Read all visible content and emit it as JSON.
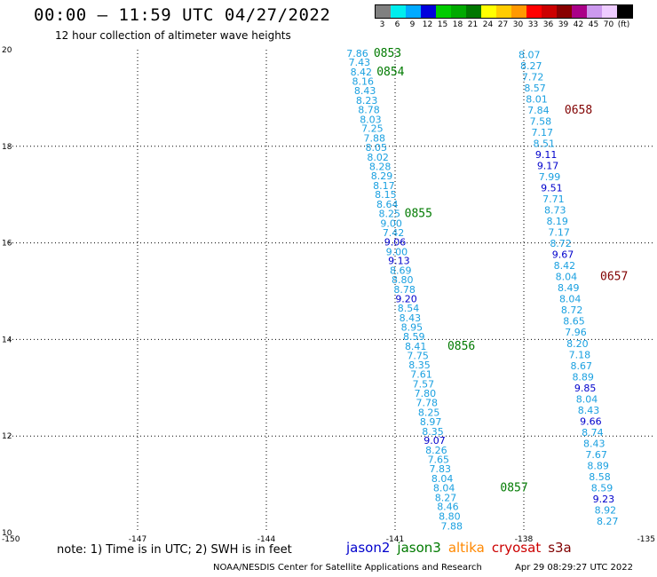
{
  "header": {
    "title": "00:00 – 11:59 UTC 04/27/2022",
    "subtitle": "12 hour collection of altimeter wave heights"
  },
  "colorbar": {
    "colors": [
      "#808080",
      "#00eeee",
      "#00aaff",
      "#0000dd",
      "#00cc00",
      "#00aa00",
      "#007700",
      "#ffff00",
      "#ffcc00",
      "#ff9900",
      "#ff0000",
      "#cc0000",
      "#880000",
      "#aa0088",
      "#cc99ee",
      "#eeccff",
      "#000000"
    ],
    "labels": [
      "3",
      "6",
      "9",
      "12",
      "15",
      "18",
      "21",
      "24",
      "27",
      "30",
      "33",
      "36",
      "39",
      "42",
      "45",
      "70",
      "(ft)"
    ]
  },
  "map": {
    "y_ticks": [
      "20",
      "18",
      "16",
      "14",
      "12",
      "10"
    ],
    "x_ticks": [
      "-150",
      "-147",
      "-144",
      "-141",
      "-138",
      "-135"
    ]
  },
  "chart_data": {
    "type": "scatter",
    "x_range": [
      -150,
      -135
    ],
    "y_range": [
      10,
      20
    ],
    "grid": true,
    "value_colors": {
      "cyan": "#1aa0e0",
      "blue": "#0000cc",
      "green": "#007a00",
      "darkred": "#800000"
    },
    "tracks": [
      {
        "satellite": "jason3",
        "points": [
          {
            "lon": -141.88,
            "lat": 19.93,
            "swh": "7.86",
            "color": "cyan"
          },
          {
            "lon": -141.83,
            "lat": 19.74,
            "swh": "7.43",
            "color": "cyan"
          },
          {
            "lon": -141.79,
            "lat": 19.54,
            "swh": "8.42",
            "color": "cyan"
          },
          {
            "lon": -141.75,
            "lat": 19.35,
            "swh": "8.16",
            "color": "cyan"
          },
          {
            "lon": -141.7,
            "lat": 19.15,
            "swh": "8.43",
            "color": "cyan"
          },
          {
            "lon": -141.66,
            "lat": 18.95,
            "swh": "8.23",
            "color": "cyan"
          },
          {
            "lon": -141.61,
            "lat": 18.76,
            "swh": "8.78",
            "color": "cyan"
          },
          {
            "lon": -141.57,
            "lat": 18.56,
            "swh": "8.03",
            "color": "cyan"
          },
          {
            "lon": -141.53,
            "lat": 18.37,
            "swh": "7.25",
            "color": "cyan"
          },
          {
            "lon": -141.48,
            "lat": 18.17,
            "swh": "7.88",
            "color": "cyan"
          },
          {
            "lon": -141.44,
            "lat": 17.98,
            "swh": "8.05",
            "color": "cyan"
          },
          {
            "lon": -141.4,
            "lat": 17.78,
            "swh": "8.02",
            "color": "cyan"
          },
          {
            "lon": -141.35,
            "lat": 17.58,
            "swh": "8.28",
            "color": "cyan"
          },
          {
            "lon": -141.31,
            "lat": 17.39,
            "swh": "8.29",
            "color": "cyan"
          },
          {
            "lon": -141.26,
            "lat": 17.19,
            "swh": "8.17",
            "color": "cyan"
          },
          {
            "lon": -141.22,
            "lat": 17.0,
            "swh": "8.15",
            "color": "cyan"
          },
          {
            "lon": -141.18,
            "lat": 16.8,
            "swh": "8.64",
            "color": "cyan"
          },
          {
            "lon": -141.13,
            "lat": 16.61,
            "swh": "8.25",
            "color": "cyan"
          },
          {
            "lon": -141.09,
            "lat": 16.41,
            "swh": "9.00",
            "color": "cyan"
          },
          {
            "lon": -141.04,
            "lat": 16.21,
            "swh": "7.42",
            "color": "cyan"
          },
          {
            "lon": -141.0,
            "lat": 16.02,
            "swh": "9.06",
            "color": "blue"
          },
          {
            "lon": -140.96,
            "lat": 15.82,
            "swh": "9.00",
            "color": "cyan"
          },
          {
            "lon": -140.91,
            "lat": 15.63,
            "swh": "9.13",
            "color": "blue"
          },
          {
            "lon": -140.87,
            "lat": 15.43,
            "swh": "8.69",
            "color": "cyan"
          },
          {
            "lon": -140.83,
            "lat": 15.24,
            "swh": "8.80",
            "color": "cyan"
          },
          {
            "lon": -140.78,
            "lat": 15.04,
            "swh": "8.78",
            "color": "cyan"
          },
          {
            "lon": -140.74,
            "lat": 14.84,
            "swh": "9.20",
            "color": "blue"
          },
          {
            "lon": -140.69,
            "lat": 14.65,
            "swh": "8.54",
            "color": "cyan"
          },
          {
            "lon": -140.65,
            "lat": 14.45,
            "swh": "8.43",
            "color": "cyan"
          },
          {
            "lon": -140.61,
            "lat": 14.26,
            "swh": "8.95",
            "color": "cyan"
          },
          {
            "lon": -140.56,
            "lat": 14.06,
            "swh": "8.59",
            "color": "cyan"
          },
          {
            "lon": -140.52,
            "lat": 13.86,
            "swh": "8.41",
            "color": "cyan"
          },
          {
            "lon": -140.47,
            "lat": 13.67,
            "swh": "7.75",
            "color": "cyan"
          },
          {
            "lon": -140.43,
            "lat": 13.47,
            "swh": "8.35",
            "color": "cyan"
          },
          {
            "lon": -140.39,
            "lat": 13.28,
            "swh": "7.61",
            "color": "cyan"
          },
          {
            "lon": -140.34,
            "lat": 13.08,
            "swh": "7.57",
            "color": "cyan"
          },
          {
            "lon": -140.3,
            "lat": 12.89,
            "swh": "7.80",
            "color": "cyan"
          },
          {
            "lon": -140.26,
            "lat": 12.69,
            "swh": "7.78",
            "color": "cyan"
          },
          {
            "lon": -140.21,
            "lat": 12.49,
            "swh": "8.25",
            "color": "cyan"
          },
          {
            "lon": -140.17,
            "lat": 12.3,
            "swh": "8.97",
            "color": "cyan"
          },
          {
            "lon": -140.12,
            "lat": 12.1,
            "swh": "8.35",
            "color": "cyan"
          },
          {
            "lon": -140.08,
            "lat": 11.91,
            "swh": "9.07",
            "color": "blue"
          },
          {
            "lon": -140.04,
            "lat": 11.71,
            "swh": "8.26",
            "color": "cyan"
          },
          {
            "lon": -139.99,
            "lat": 11.52,
            "swh": "7.65",
            "color": "cyan"
          },
          {
            "lon": -139.95,
            "lat": 11.32,
            "swh": "7.83",
            "color": "cyan"
          },
          {
            "lon": -139.9,
            "lat": 11.12,
            "swh": "8.04",
            "color": "cyan"
          },
          {
            "lon": -139.86,
            "lat": 10.93,
            "swh": "8.04",
            "color": "cyan"
          },
          {
            "lon": -139.82,
            "lat": 10.73,
            "swh": "8.27",
            "color": "cyan"
          },
          {
            "lon": -139.77,
            "lat": 10.54,
            "swh": "8.46",
            "color": "cyan"
          },
          {
            "lon": -139.73,
            "lat": 10.34,
            "swh": "8.80",
            "color": "cyan"
          },
          {
            "lon": -139.68,
            "lat": 10.14,
            "swh": "7.88",
            "color": "cyan"
          }
        ],
        "time_labels": [
          {
            "lon": -141.5,
            "lat": 19.93,
            "text": "0853",
            "color": "green"
          },
          {
            "lon": -141.43,
            "lat": 19.54,
            "text": "0854",
            "color": "green"
          },
          {
            "lon": -140.78,
            "lat": 16.61,
            "text": "0855",
            "color": "green"
          },
          {
            "lon": -139.78,
            "lat": 13.86,
            "text": "0856",
            "color": "green"
          },
          {
            "lon": -138.55,
            "lat": 10.93,
            "text": "0857",
            "color": "green"
          }
        ]
      },
      {
        "satellite": "cryosat",
        "points": [
          {
            "lon": -137.87,
            "lat": 19.9,
            "swh": "8.07",
            "color": "cyan"
          },
          {
            "lon": -137.83,
            "lat": 19.67,
            "swh": "8.27",
            "color": "cyan"
          },
          {
            "lon": -137.79,
            "lat": 19.44,
            "swh": "7.72",
            "color": "cyan"
          },
          {
            "lon": -137.74,
            "lat": 19.21,
            "swh": "8.57",
            "color": "cyan"
          },
          {
            "lon": -137.7,
            "lat": 18.98,
            "swh": "8.01",
            "color": "cyan"
          },
          {
            "lon": -137.66,
            "lat": 18.75,
            "swh": "7.84",
            "color": "cyan"
          },
          {
            "lon": -137.61,
            "lat": 18.52,
            "swh": "7.58",
            "color": "cyan"
          },
          {
            "lon": -137.57,
            "lat": 18.29,
            "swh": "7.17",
            "color": "cyan"
          },
          {
            "lon": -137.53,
            "lat": 18.06,
            "swh": "8.51",
            "color": "cyan"
          },
          {
            "lon": -137.48,
            "lat": 17.83,
            "swh": "9.11",
            "color": "blue"
          },
          {
            "lon": -137.44,
            "lat": 17.6,
            "swh": "9.17",
            "color": "blue"
          },
          {
            "lon": -137.4,
            "lat": 17.37,
            "swh": "7.99",
            "color": "cyan"
          },
          {
            "lon": -137.35,
            "lat": 17.14,
            "swh": "9.51",
            "color": "blue"
          },
          {
            "lon": -137.31,
            "lat": 16.91,
            "swh": "7.71",
            "color": "cyan"
          },
          {
            "lon": -137.27,
            "lat": 16.68,
            "swh": "8.73",
            "color": "cyan"
          },
          {
            "lon": -137.22,
            "lat": 16.45,
            "swh": "8.19",
            "color": "cyan"
          },
          {
            "lon": -137.18,
            "lat": 16.22,
            "swh": "7.17",
            "color": "cyan"
          },
          {
            "lon": -137.14,
            "lat": 15.99,
            "swh": "8.72",
            "color": "cyan"
          },
          {
            "lon": -137.09,
            "lat": 15.76,
            "swh": "9.67",
            "color": "blue"
          },
          {
            "lon": -137.05,
            "lat": 15.53,
            "swh": "8.42",
            "color": "cyan"
          },
          {
            "lon": -137.01,
            "lat": 15.3,
            "swh": "8.04",
            "color": "cyan"
          },
          {
            "lon": -136.96,
            "lat": 15.07,
            "swh": "8.49",
            "color": "cyan"
          },
          {
            "lon": -136.92,
            "lat": 14.84,
            "swh": "8.04",
            "color": "cyan"
          },
          {
            "lon": -136.88,
            "lat": 14.61,
            "swh": "8.72",
            "color": "cyan"
          },
          {
            "lon": -136.83,
            "lat": 14.38,
            "swh": "8.65",
            "color": "cyan"
          },
          {
            "lon": -136.79,
            "lat": 14.15,
            "swh": "7.96",
            "color": "cyan"
          },
          {
            "lon": -136.75,
            "lat": 13.92,
            "swh": "8.20",
            "color": "cyan"
          },
          {
            "lon": -136.7,
            "lat": 13.69,
            "swh": "7.18",
            "color": "cyan"
          },
          {
            "lon": -136.66,
            "lat": 13.46,
            "swh": "8.67",
            "color": "cyan"
          },
          {
            "lon": -136.62,
            "lat": 13.23,
            "swh": "8.89",
            "color": "cyan"
          },
          {
            "lon": -136.57,
            "lat": 13.0,
            "swh": "9.85",
            "color": "blue"
          },
          {
            "lon": -136.53,
            "lat": 12.77,
            "swh": "8.04",
            "color": "cyan"
          },
          {
            "lon": -136.49,
            "lat": 12.54,
            "swh": "8.43",
            "color": "cyan"
          },
          {
            "lon": -136.44,
            "lat": 12.31,
            "swh": "9.66",
            "color": "blue"
          },
          {
            "lon": -136.4,
            "lat": 12.08,
            "swh": "8.74",
            "color": "cyan"
          },
          {
            "lon": -136.36,
            "lat": 11.85,
            "swh": "8.43",
            "color": "cyan"
          },
          {
            "lon": -136.31,
            "lat": 11.62,
            "swh": "7.67",
            "color": "cyan"
          },
          {
            "lon": -136.27,
            "lat": 11.39,
            "swh": "8.89",
            "color": "cyan"
          },
          {
            "lon": -136.23,
            "lat": 11.16,
            "swh": "8.58",
            "color": "cyan"
          },
          {
            "lon": -136.18,
            "lat": 10.93,
            "swh": "8.59",
            "color": "cyan"
          },
          {
            "lon": -136.14,
            "lat": 10.7,
            "swh": "9.23",
            "color": "blue"
          },
          {
            "lon": -136.1,
            "lat": 10.47,
            "swh": "8.92",
            "color": "cyan"
          },
          {
            "lon": -136.05,
            "lat": 10.24,
            "swh": "8.27",
            "color": "cyan"
          }
        ],
        "time_labels": [
          {
            "lon": -137.05,
            "lat": 18.75,
            "text": "0658",
            "color": "darkred"
          },
          {
            "lon": -136.22,
            "lat": 15.3,
            "text": "0657",
            "color": "darkred"
          }
        ]
      }
    ]
  },
  "note": "note: 1) Time is in UTC; 2) SWH is in feet",
  "legend": [
    {
      "label": "jason2",
      "color": "#0000cc"
    },
    {
      "label": "jason3",
      "color": "#007a00"
    },
    {
      "label": "altika",
      "color": "#ff8800"
    },
    {
      "label": "cryosat",
      "color": "#cc0000"
    },
    {
      "label": "s3a",
      "color": "#800000"
    }
  ],
  "footer": {
    "left": "NOAA/NESDIS Center for Satellite Applications and Research",
    "right": "Apr 29 08:29:27 UTC 2022"
  }
}
